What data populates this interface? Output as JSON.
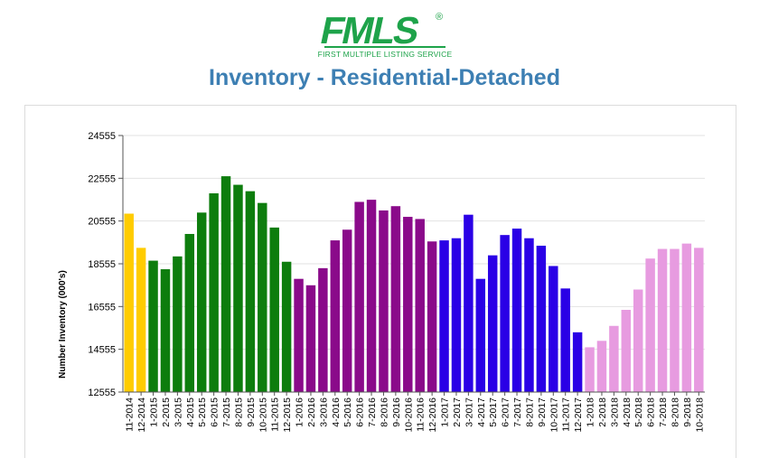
{
  "logo": {
    "word": "FMLS",
    "registered": "®",
    "tagline": "FIRST MULTIPLE LISTING SERVICE",
    "color": "#1ea34a"
  },
  "page": {
    "title": "Inventory - Residential-Detached"
  },
  "chart_data": {
    "type": "bar",
    "title": "",
    "xlabel": "",
    "ylabel": "Number Inventory (000's)",
    "ylim": [
      12555,
      24555
    ],
    "yticks": [
      12555,
      14555,
      16555,
      18555,
      20555,
      22555,
      24555
    ],
    "grid": true,
    "legend": "none",
    "categories": [
      "11-2014",
      "12-2014",
      "1-2015",
      "2-2015",
      "3-2015",
      "4-2015",
      "5-2015",
      "6-2015",
      "7-2015",
      "8-2015",
      "9-2015",
      "10-2015",
      "11-2015",
      "12-2015",
      "1-2016",
      "2-2016",
      "3-2016",
      "4-2016",
      "5-2016",
      "6-2016",
      "7-2016",
      "8-2016",
      "9-2016",
      "10-2016",
      "11-2016",
      "12-2016",
      "1-2017",
      "2-2017",
      "3-2017",
      "4-2017",
      "5-2017",
      "6-2017",
      "7-2017",
      "8-2017",
      "9-2017",
      "10-2017",
      "11-2017",
      "12-2017",
      "1-2018",
      "2-2018",
      "3-2018",
      "4-2018",
      "5-2018",
      "6-2018",
      "7-2018",
      "8-2018",
      "9-2018",
      "10-2018"
    ],
    "values": [
      20900,
      19300,
      18700,
      18300,
      18900,
      19950,
      20950,
      21850,
      22650,
      22250,
      21950,
      21400,
      20250,
      18650,
      17850,
      17550,
      18350,
      19650,
      20150,
      21450,
      21550,
      21050,
      21250,
      20750,
      20650,
      19600,
      19650,
      19750,
      20850,
      17850,
      18950,
      19900,
      20200,
      19750,
      19400,
      18450,
      17400,
      15350,
      14650,
      14950,
      15650,
      16400,
      17350,
      18800,
      19250,
      19250,
      19500,
      19300
    ],
    "colors": [
      "#ffcc00",
      "#ffcc00",
      "#0d7d0d",
      "#0d7d0d",
      "#0d7d0d",
      "#0d7d0d",
      "#0d7d0d",
      "#0d7d0d",
      "#0d7d0d",
      "#0d7d0d",
      "#0d7d0d",
      "#0d7d0d",
      "#0d7d0d",
      "#0d7d0d",
      "#8a0a8a",
      "#8a0a8a",
      "#8a0a8a",
      "#8a0a8a",
      "#8a0a8a",
      "#8a0a8a",
      "#8a0a8a",
      "#8a0a8a",
      "#8a0a8a",
      "#8a0a8a",
      "#8a0a8a",
      "#8a0a8a",
      "#2a00e6",
      "#2a00e6",
      "#2a00e6",
      "#2a00e6",
      "#2a00e6",
      "#2a00e6",
      "#2a00e6",
      "#2a00e6",
      "#2a00e6",
      "#2a00e6",
      "#2a00e6",
      "#2a00e6",
      "#e79be0",
      "#e79be0",
      "#e79be0",
      "#e79be0",
      "#e79be0",
      "#e79be0",
      "#e79be0",
      "#e79be0",
      "#e79be0",
      "#e79be0"
    ]
  }
}
